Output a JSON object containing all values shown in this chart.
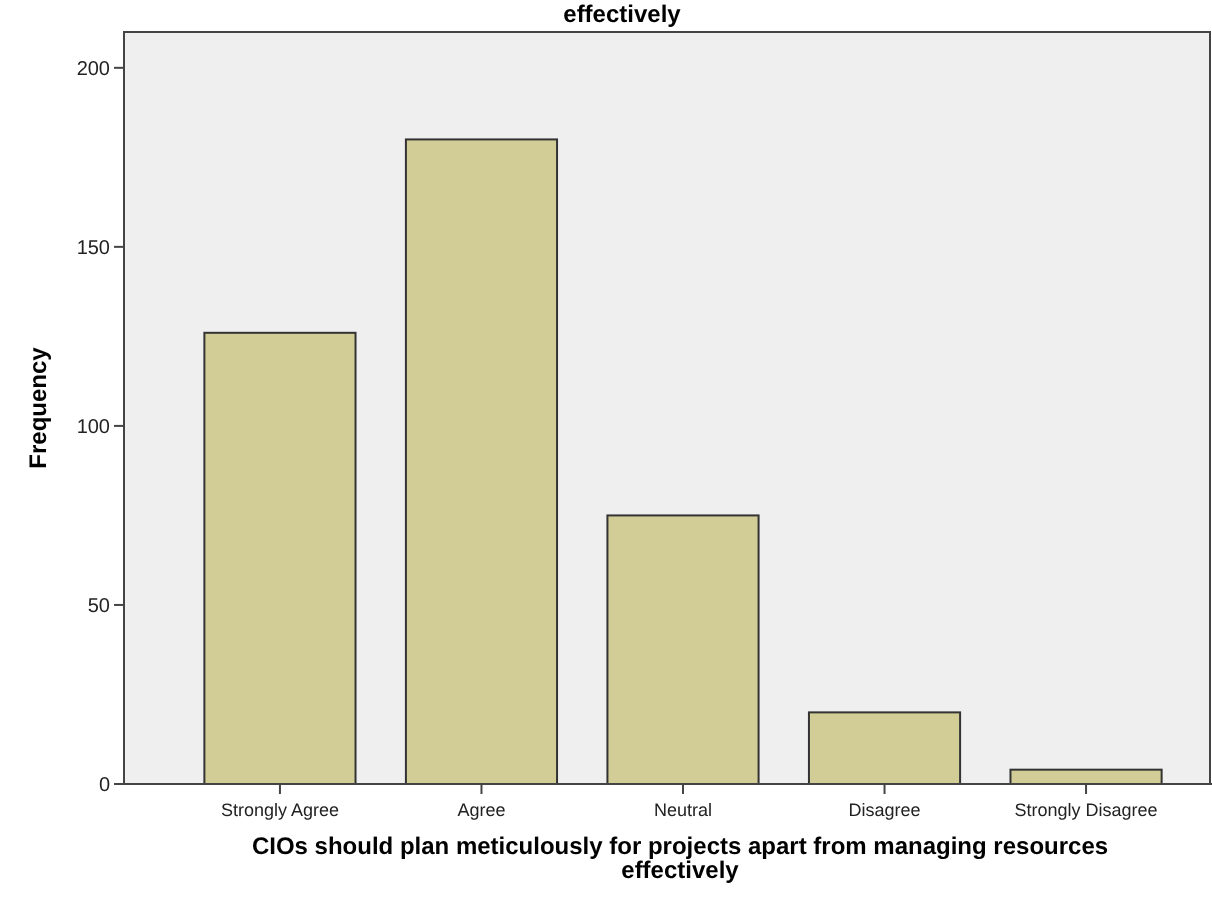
{
  "chart_data": {
    "type": "bar",
    "title": "effectively",
    "xlabel": "CIOs should plan meticulously for projects apart from managing resources effectively",
    "ylabel": "Frequency",
    "categories": [
      "Strongly Agree",
      "Agree",
      "Neutral",
      "Disagree",
      "Strongly Disagree"
    ],
    "values": [
      126,
      180,
      75,
      20,
      4
    ],
    "color": "#d2cd96",
    "ylim": [
      0,
      210
    ],
    "yticks": [
      0,
      50,
      100,
      150,
      200
    ],
    "grid": false
  }
}
